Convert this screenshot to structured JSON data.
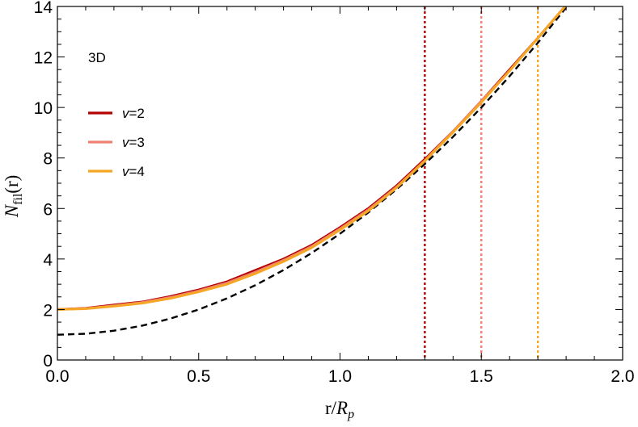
{
  "chart_data": {
    "type": "line",
    "panel_label": "3D",
    "xlabel_main": "r/",
    "xlabel_italic": "R",
    "xlabel_sub": "p",
    "ylabel_italic": "N",
    "ylabel_sub": "fil",
    "ylabel_tail": "(r)",
    "xlim": [
      0,
      2
    ],
    "ylim": [
      0,
      14
    ],
    "xticks": [
      "0.0",
      "0.5",
      "1.0",
      "1.5",
      "2.0"
    ],
    "yticks": [
      "0",
      "2",
      "4",
      "6",
      "8",
      "10",
      "12",
      "14"
    ],
    "grid": false,
    "legend_position": "upper-left",
    "series": [
      {
        "name": "v=2",
        "legend_italic": "v",
        "legend_rest": "=2",
        "color": "#b30000",
        "x": [
          0.0,
          0.1,
          0.2,
          0.3,
          0.4,
          0.5,
          0.6,
          0.7,
          0.8,
          0.9,
          1.0,
          1.1,
          1.2,
          1.3,
          1.4,
          1.5,
          1.6,
          1.7,
          1.8
        ],
        "y": [
          2.0,
          2.05,
          2.18,
          2.3,
          2.52,
          2.78,
          3.1,
          3.55,
          4.0,
          4.55,
          5.25,
          6.0,
          6.9,
          7.95,
          9.05,
          10.25,
          11.5,
          12.75,
          14.05
        ]
      },
      {
        "name": "v=3",
        "legend_italic": "v",
        "legend_rest": "=3",
        "color": "#f08070",
        "x": [
          0.0,
          0.1,
          0.2,
          0.3,
          0.4,
          0.5,
          0.6,
          0.7,
          0.8,
          0.9,
          1.0,
          1.1,
          1.2,
          1.3,
          1.4,
          1.5,
          1.6,
          1.7,
          1.8
        ],
        "y": [
          2.0,
          2.04,
          2.15,
          2.28,
          2.48,
          2.74,
          3.05,
          3.48,
          3.95,
          4.5,
          5.2,
          5.95,
          6.85,
          7.9,
          9.05,
          10.25,
          11.45,
          12.75,
          14.05
        ]
      },
      {
        "name": "v=4",
        "legend_italic": "v",
        "legend_rest": "=4",
        "color": "#f5a623",
        "x": [
          0.0,
          0.1,
          0.2,
          0.3,
          0.4,
          0.5,
          0.6,
          0.7,
          0.8,
          0.9,
          1.0,
          1.1,
          1.2,
          1.3,
          1.4,
          1.5,
          1.6,
          1.7,
          1.8
        ],
        "y": [
          2.0,
          2.03,
          2.13,
          2.25,
          2.44,
          2.7,
          3.0,
          3.42,
          3.9,
          4.45,
          5.15,
          5.9,
          6.82,
          7.88,
          9.02,
          10.2,
          11.45,
          12.75,
          14.05
        ]
      }
    ],
    "reference_curve": {
      "style": "dashed",
      "color": "#000000",
      "x": [
        0.0,
        0.1,
        0.2,
        0.3,
        0.4,
        0.5,
        0.6,
        0.7,
        0.8,
        0.9,
        1.0,
        1.1,
        1.2,
        1.3,
        1.4,
        1.5,
        1.6,
        1.7,
        1.8
      ],
      "y": [
        1.0,
        1.04,
        1.16,
        1.36,
        1.64,
        2.0,
        2.44,
        2.96,
        3.56,
        4.24,
        5.0,
        5.84,
        6.76,
        7.76,
        8.84,
        10.0,
        11.24,
        12.56,
        13.96
      ]
    },
    "vertical_lines": [
      {
        "x": 1.3,
        "color": "#b30000"
      },
      {
        "x": 1.5,
        "color": "#f08070"
      },
      {
        "x": 1.7,
        "color": "#f5a623"
      }
    ]
  }
}
